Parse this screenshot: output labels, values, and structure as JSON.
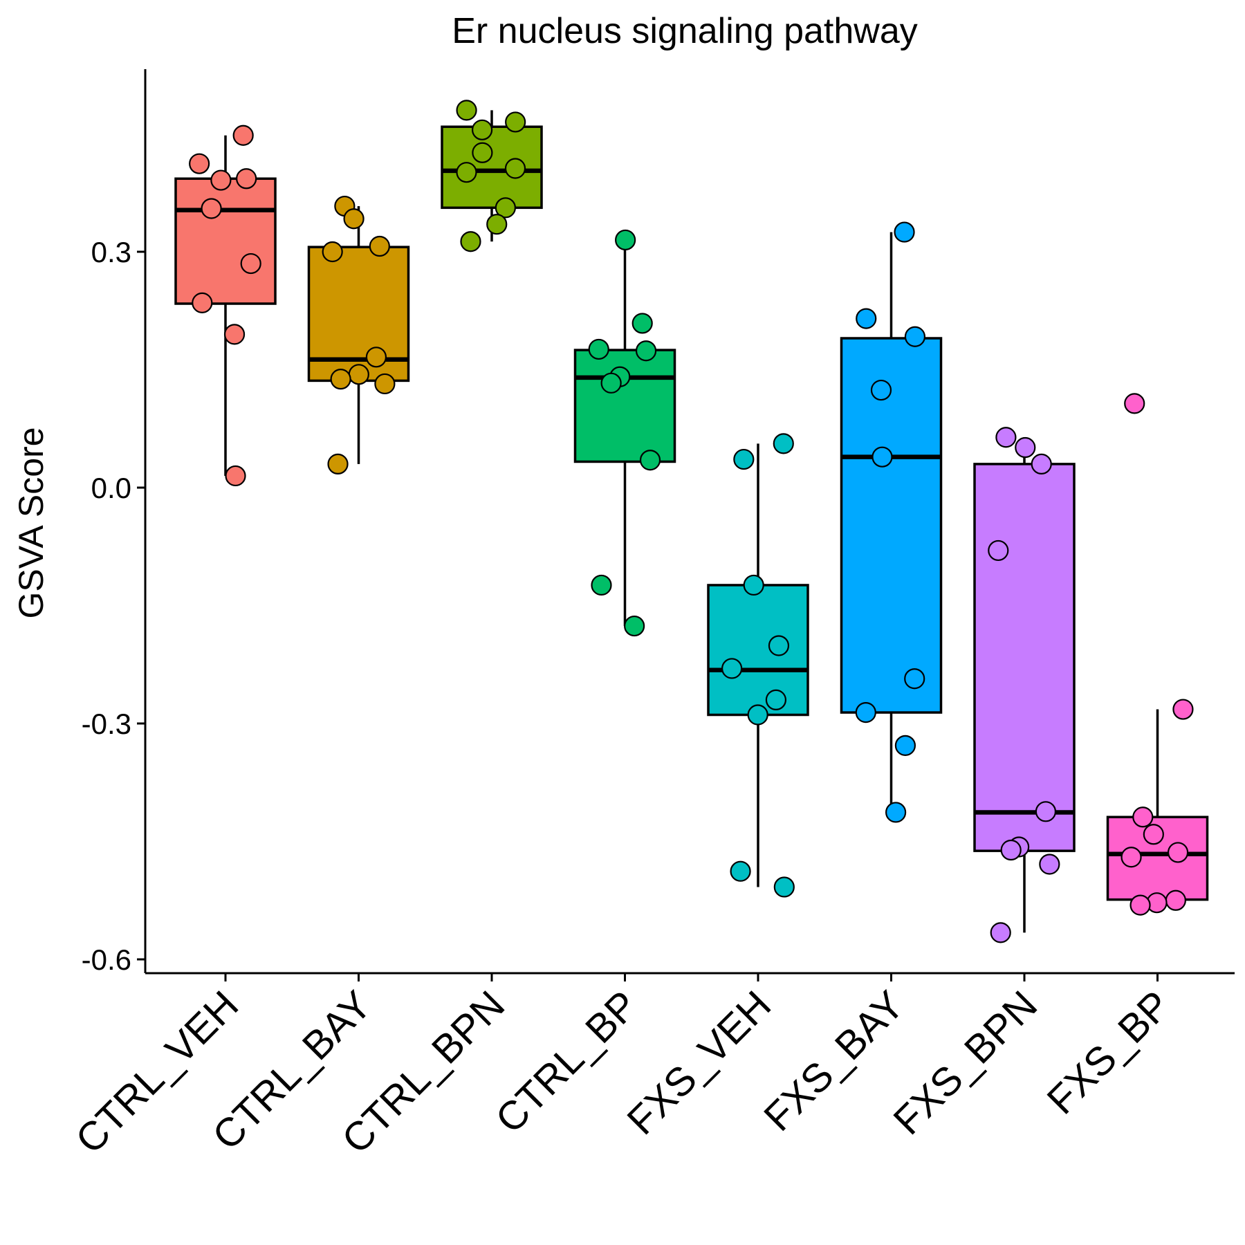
{
  "chart_data": {
    "type": "box",
    "title": "Er nucleus signaling pathway",
    "ylabel": "GSVA Score",
    "xlabel": "",
    "ylim": [
      -0.62,
      0.53
    ],
    "yticks": [
      -0.6,
      -0.3,
      0.0,
      0.3
    ],
    "ytick_labels": [
      "-0.6",
      "-0.3",
      "0.0",
      "0.3"
    ],
    "grid": false,
    "legend": "none",
    "categories": [
      "CTRL_VEH",
      "CTRL_BAY",
      "CTRL_BPN",
      "CTRL_BP",
      "FXS_VEH",
      "FXS_BAY",
      "FXS_BPN",
      "FXS_BP"
    ],
    "colors": [
      "#F8766D",
      "#CD9600",
      "#7CAE00",
      "#00BE67",
      "#00BFC4",
      "#00A9FF",
      "#C77CFF",
      "#FF61CC"
    ],
    "boxes": [
      {
        "q1": 0.234,
        "median": 0.353,
        "q3": 0.393,
        "whisker_low": 0.015,
        "whisker_high": 0.448
      },
      {
        "q1": 0.136,
        "median": 0.163,
        "q3": 0.306,
        "whisker_low": 0.03,
        "whisker_high": 0.358
      },
      {
        "q1": 0.356,
        "median": 0.403,
        "q3": 0.459,
        "whisker_low": 0.313,
        "whisker_high": 0.48
      },
      {
        "q1": 0.033,
        "median": 0.14,
        "q3": 0.175,
        "whisker_low": -0.176,
        "whisker_high": 0.315
      },
      {
        "q1": -0.289,
        "median": -0.232,
        "q3": -0.124,
        "whisker_low": -0.508,
        "whisker_high": 0.056
      },
      {
        "q1": -0.286,
        "median": 0.039,
        "q3": 0.19,
        "whisker_low": -0.413,
        "whisker_high": 0.325
      },
      {
        "q1": -0.462,
        "median": -0.413,
        "q3": 0.03,
        "whisker_low": -0.566,
        "whisker_high": 0.064
      },
      {
        "q1": -0.524,
        "median": -0.466,
        "q3": -0.419,
        "whisker_low": -0.531,
        "whisker_high": -0.282
      }
    ],
    "points": [
      [
        0.448,
        0.412,
        0.393,
        0.391,
        0.355,
        0.285,
        0.235,
        0.195,
        0.015
      ],
      [
        0.358,
        0.342,
        0.307,
        0.3,
        0.166,
        0.144,
        0.138,
        0.132,
        0.03
      ],
      [
        0.48,
        0.465,
        0.455,
        0.426,
        0.406,
        0.401,
        0.356,
        0.335,
        0.313
      ],
      [
        0.315,
        0.209,
        0.176,
        0.174,
        0.141,
        0.133,
        0.035,
        -0.124,
        -0.176
      ],
      [
        0.056,
        0.036,
        -0.124,
        -0.201,
        -0.23,
        -0.27,
        -0.289,
        -0.488,
        -0.508
      ],
      [
        0.325,
        0.215,
        0.192,
        0.124,
        0.039,
        -0.243,
        -0.286,
        -0.328,
        -0.413
      ],
      [
        0.064,
        0.051,
        0.03,
        -0.08,
        -0.412,
        -0.457,
        -0.461,
        -0.479,
        -0.566
      ],
      [
        0.107,
        -0.282,
        -0.419,
        -0.441,
        -0.464,
        -0.47,
        -0.525,
        -0.528,
        -0.531
      ]
    ]
  }
}
